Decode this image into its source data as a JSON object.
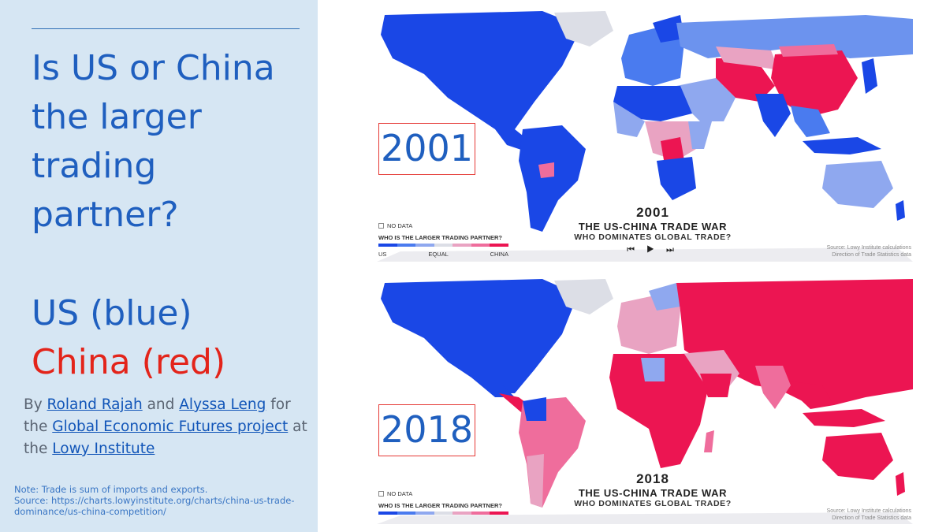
{
  "title": "Is US or China the larger trading partner?",
  "legend_text": {
    "us": "US (blue)",
    "china": "China (red)"
  },
  "credits": {
    "by": "By",
    "author1": "Roland Rajah",
    "and": "and",
    "author2": "Alyssa Leng",
    "for": "for",
    "the1": "the",
    "project": "Global Economic Futures project",
    "at": "at",
    "the2": "the",
    "institute": "Lowy Institute"
  },
  "note": {
    "line1": "Note: Trade is sum of imports and exports.",
    "line2": "Source: https://charts.lowyinstitute.org/charts/china-us-trade-dominance/us-china-competition/"
  },
  "colors": {
    "us_strong": "#1a47e6",
    "us_mid": "#4a7bef",
    "us_light": "#8fa8ef",
    "equal": "#dcdee6",
    "cn_light": "#e9a3c2",
    "cn_mid": "#ef6d9c",
    "cn_strong": "#ec1552",
    "frame": "#e53935",
    "heading_blue": "#1f5fbf",
    "china_red": "#e3241a"
  },
  "maps": [
    {
      "year_label": "2001",
      "chart_year": "2001",
      "chart_title": "THE US-CHINA TRADE WAR",
      "chart_subtitle": "WHO DOMINATES GLOBAL TRADE?",
      "no_data": "NO DATA",
      "legend_title": "WHO IS THE LARGER TRADING PARTNER?",
      "legend_ticks": [
        "US",
        "EQUAL",
        "CHINA"
      ],
      "controls": "⏮ ▶ ⏭",
      "source1": "Source: Lowy Institute calculations",
      "source2": "Direction of Trade Statistics data"
    },
    {
      "year_label": "2018",
      "chart_year": "2018",
      "chart_title": "THE US-CHINA TRADE WAR",
      "chart_subtitle": "WHO DOMINATES GLOBAL TRADE?",
      "no_data": "NO DATA",
      "legend_title": "WHO IS THE LARGER TRADING PARTNER?",
      "source1": "Source: Lowy Institute calculations",
      "source2": "Direction of Trade Statistics data"
    }
  ]
}
